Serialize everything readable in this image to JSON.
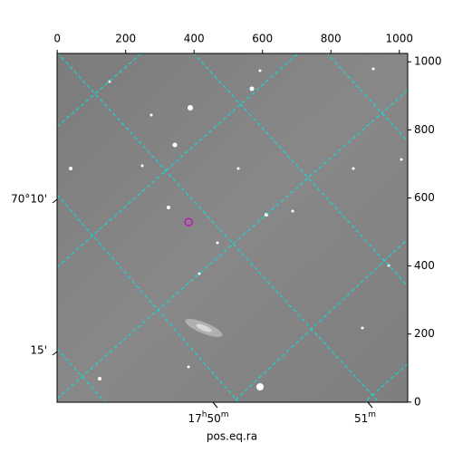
{
  "chart_data": {
    "type": "image",
    "xlabel": "pos.eq.ra",
    "xlim": [
      -0.5,
      1024.5
    ],
    "ylim": [
      -0.5,
      1024.5
    ],
    "xticks": [
      0,
      200,
      400,
      600,
      800,
      1000
    ],
    "yticks": [
      0,
      200,
      400,
      600,
      800,
      1000
    ],
    "ra_labels": [
      {
        "parts": [
          "17",
          "h",
          "50",
          "m"
        ]
      },
      {
        "parts": [
          "51",
          "m"
        ]
      }
    ],
    "dec_labels": [
      "70°10'",
      "15'"
    ],
    "markers": [
      {
        "x": 384,
        "y": 529,
        "color": "#cc00cc"
      }
    ]
  }
}
